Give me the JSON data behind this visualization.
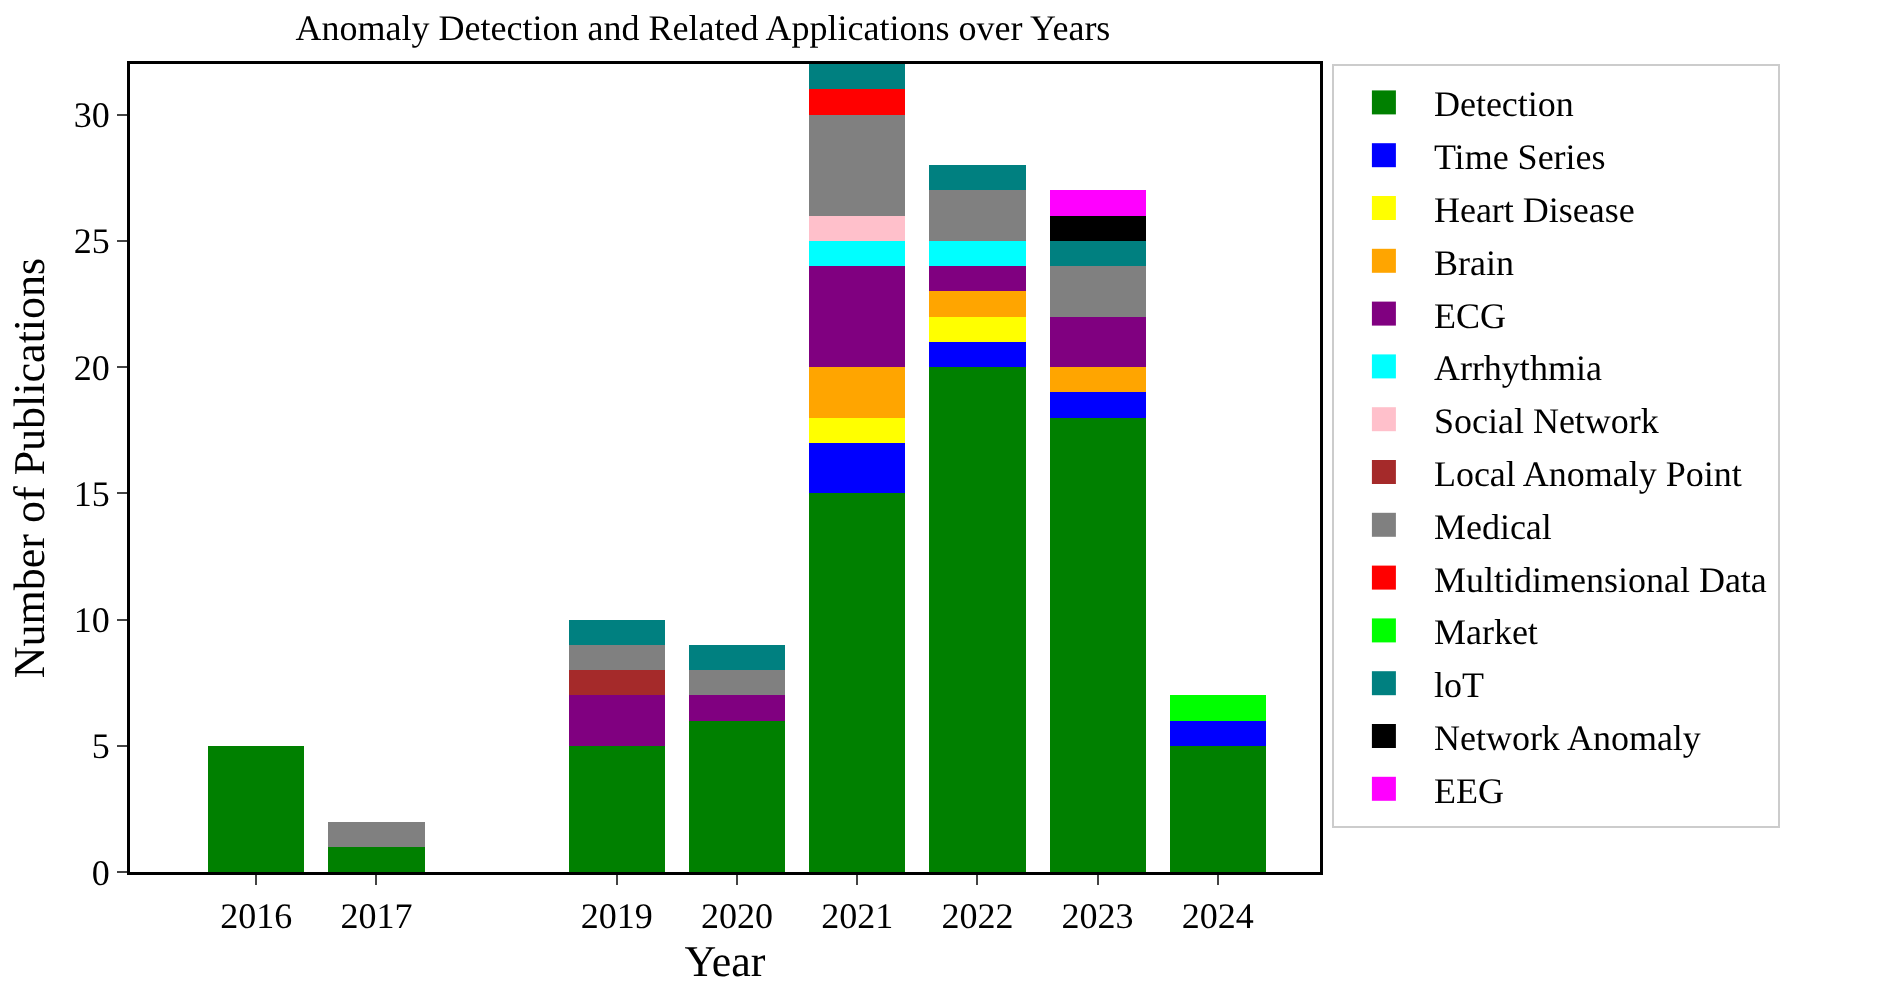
{
  "chart_data": {
    "type": "bar",
    "title": "Anomaly Detection and Related Applications over Years",
    "xlabel": "Year",
    "ylabel": "Number of Publications",
    "x": [
      2016,
      2017,
      2019,
      2020,
      2021,
      2022,
      2023,
      2024
    ],
    "xlim": [
      2014.95,
      2024.85
    ],
    "xticks": [
      2016,
      2017,
      2019,
      2020,
      2021,
      2022,
      2023,
      2024
    ],
    "ylim": [
      0,
      32
    ],
    "yticks": [
      0,
      5,
      10,
      15,
      20,
      25,
      30
    ],
    "stacked": true,
    "grid": false,
    "legend": "top right",
    "series": [
      {
        "name": "Detection",
        "color": "#008000",
        "values": [
          5,
          1,
          5,
          6,
          15,
          20,
          18,
          5
        ]
      },
      {
        "name": "Time Series",
        "color": "#0000ff",
        "values": [
          null,
          null,
          null,
          null,
          2,
          1,
          1,
          1
        ]
      },
      {
        "name": "Heart Disease",
        "color": "#ffff00",
        "values": [
          null,
          null,
          null,
          null,
          1,
          1,
          null,
          null
        ]
      },
      {
        "name": "Brain",
        "color": "#ffa500",
        "values": [
          null,
          null,
          null,
          null,
          2,
          1,
          1,
          null
        ]
      },
      {
        "name": "ECG",
        "color": "#800080",
        "values": [
          null,
          null,
          2,
          1,
          4,
          1,
          2,
          null
        ]
      },
      {
        "name": "Arrhythmia",
        "color": "#00ffff",
        "values": [
          null,
          null,
          null,
          null,
          1,
          1,
          null,
          null
        ]
      },
      {
        "name": "Social Network",
        "color": "#ffc0cb",
        "values": [
          null,
          null,
          null,
          null,
          1,
          null,
          null,
          null
        ]
      },
      {
        "name": "Local Anomaly Point",
        "color": "#a52a2a",
        "values": [
          null,
          null,
          1,
          null,
          null,
          null,
          null,
          null
        ]
      },
      {
        "name": "Medical",
        "color": "#808080",
        "values": [
          null,
          1,
          1,
          1,
          4,
          2,
          2,
          null
        ]
      },
      {
        "name": "Multidimensional Data",
        "color": "#ff0000",
        "values": [
          null,
          null,
          null,
          null,
          1,
          null,
          null,
          null
        ]
      },
      {
        "name": "Market",
        "color": "#00ff00",
        "values": [
          null,
          null,
          null,
          null,
          null,
          null,
          null,
          1
        ]
      },
      {
        "name": "loT",
        "color": "#008080",
        "values": [
          null,
          null,
          1,
          1,
          1,
          1,
          1,
          null
        ]
      },
      {
        "name": "Network Anomaly",
        "color": "#000000",
        "values": [
          null,
          null,
          null,
          null,
          null,
          null,
          1,
          null
        ]
      },
      {
        "name": "EEG",
        "color": "#ff00ff",
        "values": [
          null,
          null,
          null,
          null,
          null,
          null,
          1,
          null
        ]
      }
    ]
  }
}
